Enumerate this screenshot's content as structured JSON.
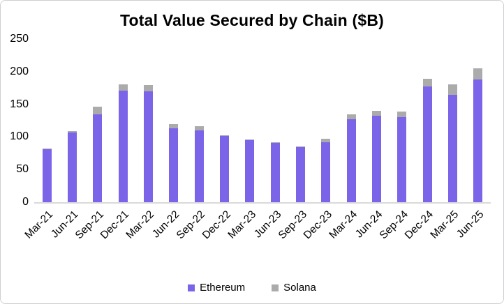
{
  "chart_data": {
    "type": "bar",
    "stacked": true,
    "title": "Total Value Secured by Chain ($B)",
    "categories": [
      "Mar-21",
      "Jun-21",
      "Sep-21",
      "Dec-21",
      "Mar-22",
      "Jun-22",
      "Sep-22",
      "Dec-22",
      "Mar-23",
      "Jun-23",
      "Sep-23",
      "Dec-23",
      "Mar-24",
      "Jun-24",
      "Sep-24",
      "Dec-24",
      "Mar-25",
      "Jun-25"
    ],
    "series": [
      {
        "name": "Ethereum",
        "color": "#7b64e8",
        "values": [
          81,
          107,
          135,
          171,
          170,
          113,
          110,
          101,
          95,
          91,
          84,
          92,
          127,
          132,
          130,
          177,
          165,
          188
        ]
      },
      {
        "name": "Solana",
        "color": "#ababab",
        "values": [
          1,
          2,
          11,
          10,
          10,
          7,
          7,
          2,
          1,
          1,
          1,
          5,
          8,
          8,
          9,
          12,
          16,
          17
        ]
      }
    ],
    "y_ticks": [
      0,
      50,
      100,
      150,
      200,
      250
    ],
    "ylim": [
      0,
      250
    ],
    "grid": false,
    "legend_position": "bottom",
    "axis_line_color": "#d9d9d9"
  }
}
